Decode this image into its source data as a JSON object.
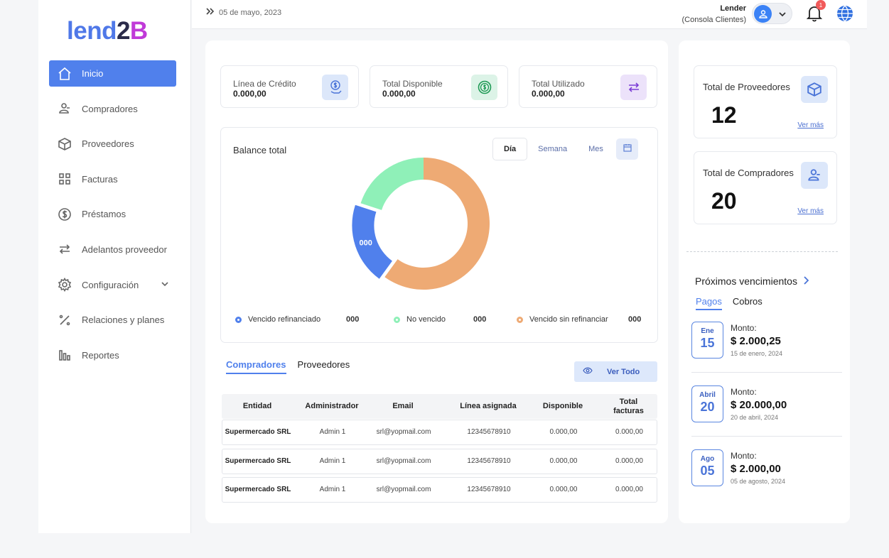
{
  "logo": {
    "a": "lend",
    "b": "2",
    "c": "B"
  },
  "topbar": {
    "date": "05 de mayo, 2023",
    "user_name": "Lender",
    "user_role": "(Consola Clientes)",
    "notifications": "1"
  },
  "nav": [
    {
      "label": "Inicio",
      "icon": "home-icon"
    },
    {
      "label": "Compradores",
      "icon": "users-icon"
    },
    {
      "label": "Proveedores",
      "icon": "box-icon"
    },
    {
      "label": "Facturas",
      "icon": "grid-icon"
    },
    {
      "label": "Préstamos",
      "icon": "dollar-icon"
    },
    {
      "label": "Adelantos proveedor",
      "icon": "arrows-icon"
    },
    {
      "label": "Configuración",
      "icon": "gear-icon"
    },
    {
      "label": "Relaciones y planes",
      "icon": "percent-icon"
    },
    {
      "label": "Reportes",
      "icon": "bars-icon"
    }
  ],
  "stats": [
    {
      "label": "Línea de Crédito",
      "value": "0.000,00"
    },
    {
      "label": "Total Disponible",
      "value": "0.000,00"
    },
    {
      "label": "Total Utilizado",
      "value": "0.000,00"
    }
  ],
  "balance": {
    "title": "Balance total",
    "periods": [
      "Día",
      "Semana",
      "Mes"
    ],
    "center_label": "000"
  },
  "chart_data": {
    "type": "pie",
    "series": [
      {
        "name": "Vencido refinanciado",
        "value": 20,
        "label": "000",
        "color": "#5080ec"
      },
      {
        "name": "No vencido",
        "value": 20,
        "label": "000",
        "color": "#8ff0b8"
      },
      {
        "name": "Vencido sin refinanciar",
        "value": 60,
        "label": "000",
        "color": "#eeaa74"
      }
    ]
  },
  "table": {
    "tabs": [
      "Compradores",
      "Proveedores"
    ],
    "view_all": "Ver Todo",
    "columns": [
      "Entidad",
      "Administrador",
      "Email",
      "Línea asignada",
      "Disponible",
      "Total",
      "facturas"
    ],
    "rows": [
      [
        "Supermercado SRL",
        "Admin 1",
        "srl@yopmail.com",
        "12345678910",
        "0.000,00",
        "0.000,00"
      ],
      [
        "Supermercado SRL",
        "Admin 1",
        "srl@yopmail.com",
        "12345678910",
        "0.000,00",
        "0.000,00"
      ],
      [
        "Supermercado SRL",
        "Admin 1",
        "srl@yopmail.com",
        "12345678910",
        "0.000,00",
        "0.000,00"
      ]
    ]
  },
  "right": {
    "proveedores": {
      "label": "Total de Proveedores",
      "value": "12",
      "more": "Ver más"
    },
    "compradores": {
      "label": "Total de Compradores",
      "value": "20",
      "more": "Ver más"
    },
    "proximos": "Próximos vencimientos",
    "ptabs": [
      "Pagos",
      "Cobros"
    ],
    "vencimientos": [
      {
        "month": "Ene",
        "day": "15",
        "label": "Monto:",
        "amount": "$ 2.000,25",
        "date": "15 de enero, 2024"
      },
      {
        "month": "Abril",
        "day": "20",
        "label": "Monto:",
        "amount": "$ 20.000,00",
        "date": "20 de abril, 2024"
      },
      {
        "month": "Ago",
        "day": "05",
        "label": "Monto:",
        "amount": "$ 2.000,00",
        "date": "05 de agosto, 2024"
      }
    ]
  }
}
